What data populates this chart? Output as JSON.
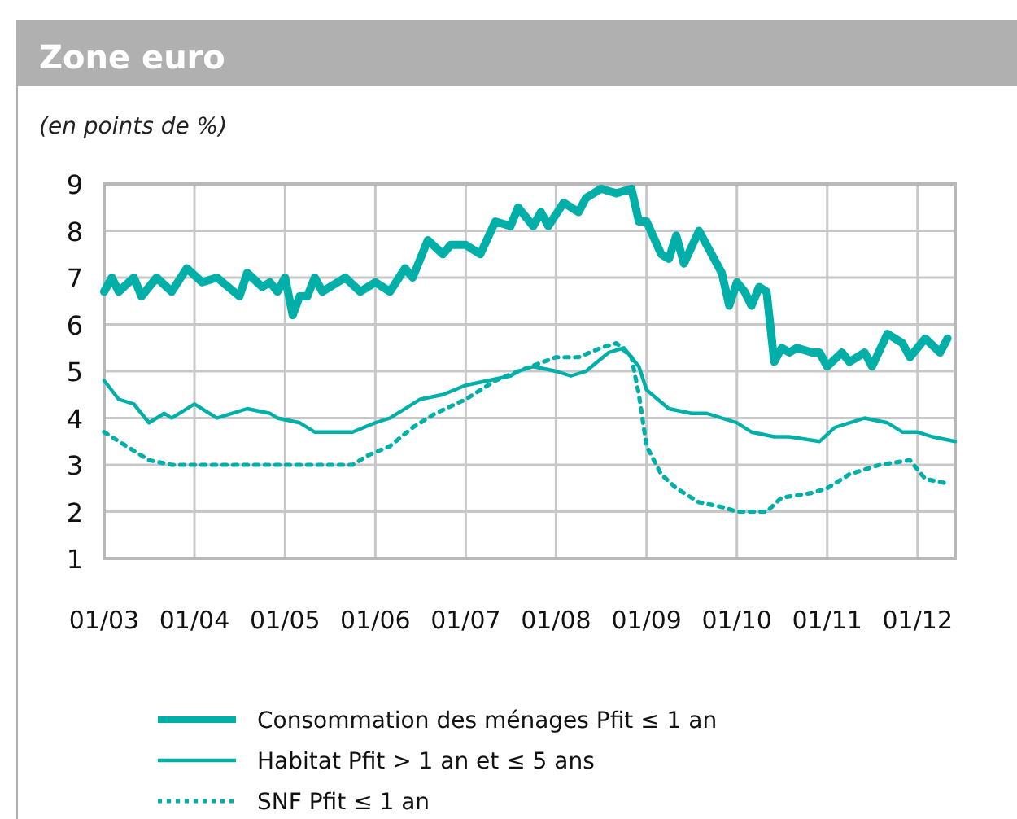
{
  "chart_data": {
    "type": "line",
    "title": "Zone euro",
    "subtitle": "(en points de %)",
    "xlim": [
      "2003-01",
      "2012-06"
    ],
    "xticks": [
      {
        "value": "2003-01",
        "label": "01/03"
      },
      {
        "value": "2004-01",
        "label": "01/04"
      },
      {
        "value": "2005-01",
        "label": "01/05"
      },
      {
        "value": "2006-01",
        "label": "01/06"
      },
      {
        "value": "2007-01",
        "label": "01/07"
      },
      {
        "value": "2008-01",
        "label": "01/08"
      },
      {
        "value": "2009-01",
        "label": "01/09"
      },
      {
        "value": "2010-01",
        "label": "01/10"
      },
      {
        "value": "2011-01",
        "label": "01/11"
      },
      {
        "value": "2012-01",
        "label": "01/12"
      }
    ],
    "ylim": [
      1,
      9
    ],
    "yticks": [
      1,
      2,
      3,
      4,
      5,
      6,
      7,
      8,
      9
    ],
    "grid": true,
    "legend": "bottom",
    "series": [
      {
        "name": "Consommation des ménages Pfit ≤ 1 an",
        "color": "#00b0a8",
        "line_style": "solid",
        "x": [
          "2003-01",
          "2003-02",
          "2003-03",
          "2003-05",
          "2003-06",
          "2003-08",
          "2003-10",
          "2003-12",
          "2004-02",
          "2004-04",
          "2004-07",
          "2004-08",
          "2004-10",
          "2004-11",
          "2004-12",
          "2005-01",
          "2005-02",
          "2005-03",
          "2005-04",
          "2005-05",
          "2005-06",
          "2005-09",
          "2005-11",
          "2006-01",
          "2006-03",
          "2006-05",
          "2006-06",
          "2006-08",
          "2006-10",
          "2006-11",
          "2007-01",
          "2007-03",
          "2007-05",
          "2007-07",
          "2007-08",
          "2007-10",
          "2007-11",
          "2007-12",
          "2008-02",
          "2008-04",
          "2008-05",
          "2008-07",
          "2008-09",
          "2008-11",
          "2008-12",
          "2009-01",
          "2009-03",
          "2009-04",
          "2009-05",
          "2009-06",
          "2009-08",
          "2009-10",
          "2009-11",
          "2009-12",
          "2010-01",
          "2010-02",
          "2010-03",
          "2010-04",
          "2010-05",
          "2010-06",
          "2010-07",
          "2010-08",
          "2010-09",
          "2010-11",
          "2010-12",
          "2011-01",
          "2011-03",
          "2011-04",
          "2011-06",
          "2011-07",
          "2011-09",
          "2011-11",
          "2011-12",
          "2012-02",
          "2012-04",
          "2012-05"
        ],
        "values": [
          6.7,
          7.0,
          6.7,
          7.0,
          6.6,
          7.0,
          6.7,
          7.2,
          6.9,
          7.0,
          6.6,
          7.1,
          6.8,
          6.9,
          6.7,
          7.0,
          6.2,
          6.6,
          6.6,
          7.0,
          6.7,
          7.0,
          6.7,
          6.9,
          6.7,
          7.2,
          7.0,
          7.8,
          7.5,
          7.7,
          7.7,
          7.5,
          8.2,
          8.1,
          8.5,
          8.1,
          8.4,
          8.1,
          8.6,
          8.4,
          8.7,
          8.9,
          8.8,
          8.9,
          8.2,
          8.2,
          7.5,
          7.4,
          7.9,
          7.3,
          8.0,
          7.4,
          7.1,
          6.4,
          6.9,
          6.7,
          6.4,
          6.8,
          6.7,
          5.2,
          5.5,
          5.4,
          5.5,
          5.4,
          5.4,
          5.1,
          5.4,
          5.2,
          5.4,
          5.1,
          5.8,
          5.6,
          5.3,
          5.7,
          5.4,
          5.7
        ]
      },
      {
        "name": "Habitat Pfit > 1 an et ≤ 5 ans",
        "color": "#00b0a8",
        "line_style": "solid",
        "x": [
          "2003-01",
          "2003-03",
          "2003-05",
          "2003-07",
          "2003-09",
          "2003-10",
          "2004-01",
          "2004-04",
          "2004-08",
          "2004-11",
          "2004-12",
          "2005-03",
          "2005-05",
          "2005-08",
          "2005-10",
          "2006-01",
          "2006-03",
          "2006-05",
          "2006-07",
          "2006-10",
          "2007-01",
          "2007-04",
          "2007-07",
          "2007-08",
          "2007-10",
          "2008-01",
          "2008-03",
          "2008-05",
          "2008-08",
          "2008-10",
          "2008-12",
          "2009-01",
          "2009-04",
          "2009-07",
          "2009-09",
          "2009-11",
          "2010-01",
          "2010-03",
          "2010-06",
          "2010-08",
          "2010-12",
          "2011-02",
          "2011-06",
          "2011-09",
          "2011-11",
          "2012-01",
          "2012-03",
          "2012-06"
        ],
        "values": [
          4.8,
          4.4,
          4.3,
          3.9,
          4.1,
          4.0,
          4.3,
          4.0,
          4.2,
          4.1,
          4.0,
          3.9,
          3.7,
          3.7,
          3.7,
          3.9,
          4.0,
          4.2,
          4.4,
          4.5,
          4.7,
          4.8,
          4.9,
          5.0,
          5.1,
          5.0,
          4.9,
          5.0,
          5.4,
          5.5,
          5.1,
          4.6,
          4.2,
          4.1,
          4.1,
          4.0,
          3.9,
          3.7,
          3.6,
          3.6,
          3.5,
          3.8,
          4.0,
          3.9,
          3.7,
          3.7,
          3.6,
          3.5
        ]
      },
      {
        "name": "SNF Pfit ≤ 1 an",
        "color": "#00b0a8",
        "line_style": "dotted",
        "x": [
          "2003-01",
          "2003-04",
          "2003-07",
          "2003-10",
          "2004-02",
          "2004-08",
          "2004-11",
          "2005-02",
          "2005-06",
          "2005-10",
          "2005-12",
          "2006-03",
          "2006-06",
          "2006-09",
          "2007-01",
          "2007-05",
          "2007-08",
          "2008-01",
          "2008-04",
          "2008-07",
          "2008-09",
          "2008-11",
          "2008-12",
          "2009-01",
          "2009-03",
          "2009-05",
          "2009-08",
          "2009-11",
          "2010-01",
          "2010-05",
          "2010-07",
          "2010-11",
          "2011-01",
          "2011-04",
          "2011-08",
          "2011-12",
          "2012-02",
          "2012-05"
        ],
        "values": [
          3.7,
          3.4,
          3.1,
          3.0,
          3.0,
          3.0,
          3.0,
          3.0,
          3.0,
          3.0,
          3.2,
          3.4,
          3.8,
          4.1,
          4.4,
          4.8,
          5.0,
          5.3,
          5.3,
          5.5,
          5.6,
          5.3,
          4.5,
          3.4,
          2.8,
          2.5,
          2.2,
          2.1,
          2.0,
          2.0,
          2.3,
          2.4,
          2.5,
          2.8,
          3.0,
          3.1,
          2.7,
          2.6
        ]
      }
    ]
  }
}
